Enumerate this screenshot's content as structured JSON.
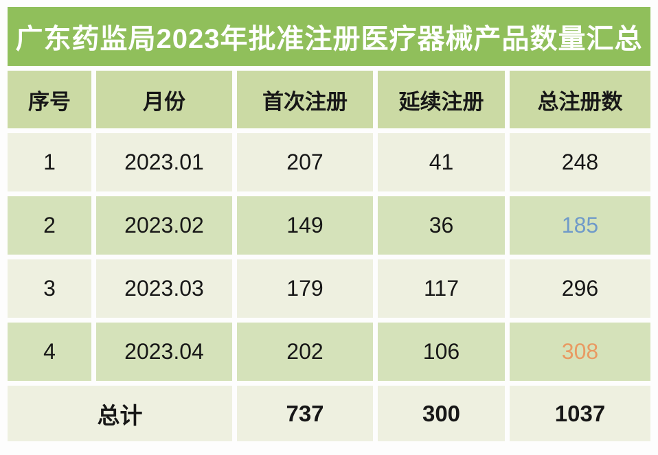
{
  "title": "广东药监局2023年批准注册医疗器械产品数量汇总",
  "columns": {
    "no": "序号",
    "month": "月份",
    "first": "首次注册",
    "renewal": "延续注册",
    "total": "总注册数"
  },
  "rows": [
    {
      "no": "1",
      "month": "2023.01",
      "first": "207",
      "renewal": "41",
      "total": "248"
    },
    {
      "no": "2",
      "month": "2023.02",
      "first": "149",
      "renewal": "36",
      "total": "185"
    },
    {
      "no": "3",
      "month": "2023.03",
      "first": "179",
      "renewal": "117",
      "total": "296"
    },
    {
      "no": "4",
      "month": "2023.04",
      "first": "202",
      "renewal": "106",
      "total": "308"
    }
  ],
  "summary": {
    "label": "总计",
    "first": "737",
    "renewal": "300",
    "total": "1037"
  },
  "colors": {
    "title_bg": "#90bf5b",
    "title_text": "#ffffff",
    "header_bg": "#cbdaa4",
    "row_odd_bg": "#eef0e0",
    "row_even_bg": "#d5e2ba",
    "text": "#171717",
    "highlight_blue": "#6f9ac9",
    "highlight_orange": "#e99a62",
    "page_bg": "#fdfdfd"
  },
  "chart_data": {
    "type": "table",
    "title": "广东药监局2023年批准注册医疗器械产品数量汇总",
    "columns": [
      "序号",
      "月份",
      "首次注册",
      "延续注册",
      "总注册数"
    ],
    "rows": [
      [
        1,
        "2023.01",
        207,
        41,
        248
      ],
      [
        2,
        "2023.02",
        149,
        36,
        185
      ],
      [
        3,
        "2023.03",
        179,
        117,
        296
      ],
      [
        4,
        "2023.04",
        202,
        106,
        308
      ]
    ],
    "totals": {
      "label": "总计",
      "首次注册": 737,
      "延续注册": 300,
      "总注册数": 1037
    },
    "annotations": "总注册数 value 185 rendered in blue; value 308 rendered in orange; all other values black"
  }
}
